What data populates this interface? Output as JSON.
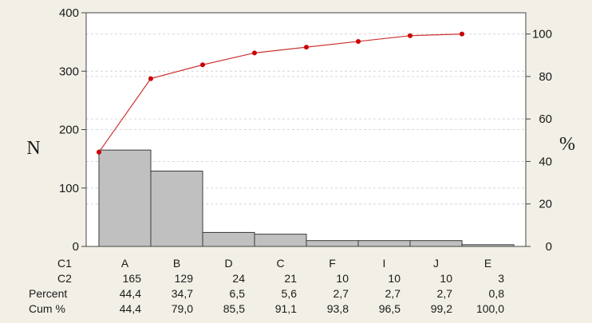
{
  "chart_data": {
    "type": "bar",
    "subtype": "pareto",
    "categories": [
      "A",
      "B",
      "D",
      "C",
      "F",
      "I",
      "J",
      "E"
    ],
    "values": [
      165,
      129,
      24,
      21,
      10,
      10,
      10,
      3
    ],
    "cumulative_percent": [
      44.4,
      79.0,
      85.5,
      91.1,
      93.8,
      96.5,
      99.2,
      100.0
    ],
    "ylabel": "N",
    "y2label": "%",
    "ylim": [
      0,
      400
    ],
    "y2lim": [
      0,
      110
    ],
    "yticks": [
      "0",
      "100",
      "200",
      "300",
      "400"
    ],
    "y2ticks": [
      "0",
      "20",
      "40",
      "60",
      "80",
      "100"
    ],
    "bar_color": "#c0c0c0",
    "bar_edge_color": "#3a3a3a",
    "line_color": "#cc3333",
    "point_color": "#cc0000",
    "grid": true,
    "table": {
      "row_labels": [
        "C1",
        "C2",
        "Percent",
        "Cum %"
      ],
      "rows": [
        [
          "A",
          "B",
          "D",
          "C",
          "F",
          "I",
          "J",
          "E"
        ],
        [
          "165",
          "129",
          "24",
          "21",
          "10",
          "10",
          "10",
          "3"
        ],
        [
          "44,4",
          "34,7",
          "6,5",
          "5,6",
          "2,7",
          "2,7",
          "2,7",
          "0,8"
        ],
        [
          "44,4",
          "79,0",
          "85,5",
          "91,1",
          "93,8",
          "96,5",
          "99,2",
          "100,0"
        ]
      ]
    }
  }
}
